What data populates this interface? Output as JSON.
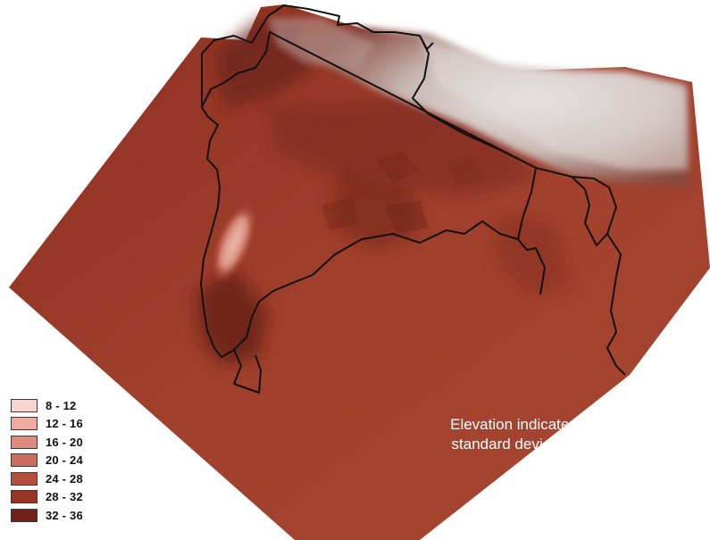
{
  "map": {
    "annotation_line1": "Elevation indicates",
    "annotation_line2": "standard deviation",
    "colors": {
      "surface": "#9e3a2a",
      "surface_dark": "#6a2218",
      "surface_light": "#c0634d",
      "mountain_light": "#e9e4e2",
      "mountain_mid": "#b8a29d",
      "border": "#111111"
    }
  },
  "legend": {
    "items": [
      {
        "label": "8 - 12",
        "color": "#f8d4d0"
      },
      {
        "label": "12 - 16",
        "color": "#eeaaa0"
      },
      {
        "label": "16 - 20",
        "color": "#de8a7c"
      },
      {
        "label": "20 - 24",
        "color": "#cd6e5d"
      },
      {
        "label": "24 - 28",
        "color": "#b44f3e"
      },
      {
        "label": "28 - 32",
        "color": "#963526"
      },
      {
        "label": "32 - 36",
        "color": "#6e1f16"
      }
    ]
  }
}
